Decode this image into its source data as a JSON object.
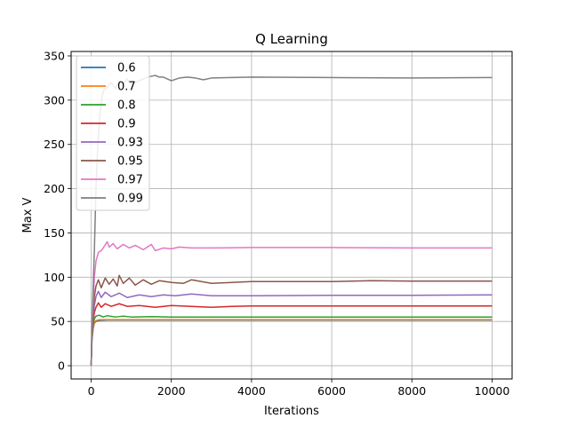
{
  "chart_data": {
    "type": "line",
    "title": "Q Learning",
    "xlabel": "Iterations",
    "ylabel": "Max V",
    "xlim": [
      -500,
      10500
    ],
    "ylim": [
      -15,
      355
    ],
    "xticks": [
      0,
      2000,
      4000,
      6000,
      8000,
      10000
    ],
    "yticks": [
      0,
      50,
      100,
      150,
      200,
      250,
      300,
      350
    ],
    "grid": true,
    "legend_position": "top-left",
    "series": [
      {
        "name": "0.6",
        "color": "#1f77b4",
        "x": [
          0,
          20,
          50,
          80,
          120,
          200,
          400,
          1000,
          2000,
          5000,
          10000
        ],
        "y": [
          0,
          30,
          42,
          48,
          50,
          51,
          51.5,
          51.5,
          51.5,
          51.5,
          51.5
        ]
      },
      {
        "name": "0.7",
        "color": "#ff7f0e",
        "x": [
          0,
          20,
          50,
          80,
          120,
          200,
          400,
          1000,
          2000,
          5000,
          10000
        ],
        "y": [
          0,
          30,
          43,
          49,
          51,
          52,
          52,
          52,
          52,
          52,
          52
        ]
      },
      {
        "name": "0.8",
        "color": "#2ca02c",
        "x": [
          0,
          20,
          50,
          80,
          120,
          200,
          300,
          400,
          600,
          800,
          1000,
          1500,
          2000,
          3000,
          5000,
          8000,
          10000
        ],
        "y": [
          0,
          32,
          46,
          53,
          56,
          57,
          55,
          56.5,
          55,
          56,
          55,
          55.5,
          55,
          55,
          55,
          55,
          55
        ]
      },
      {
        "name": "0.9",
        "color": "#d62728",
        "x": [
          0,
          20,
          50,
          80,
          120,
          180,
          250,
          350,
          500,
          700,
          900,
          1200,
          1600,
          2000,
          2500,
          3000,
          3500,
          4000,
          6000,
          8000,
          10000
        ],
        "y": [
          0,
          34,
          50,
          60,
          66,
          71,
          66,
          70,
          67,
          70,
          67,
          68,
          66,
          68,
          67,
          66,
          67,
          67.5,
          67.5,
          67.5,
          67.5
        ]
      },
      {
        "name": "0.93",
        "color": "#9467bd",
        "x": [
          0,
          20,
          50,
          80,
          120,
          180,
          250,
          350,
          500,
          700,
          900,
          1200,
          1500,
          1800,
          2100,
          2500,
          3000,
          4000,
          6000,
          8000,
          10000
        ],
        "y": [
          0,
          36,
          55,
          68,
          78,
          84,
          77,
          83,
          78,
          82,
          77,
          80,
          78,
          80,
          79,
          81,
          79,
          79,
          79.5,
          79.5,
          80
        ]
      },
      {
        "name": "0.95",
        "color": "#8c564b",
        "x": [
          0,
          20,
          50,
          80,
          120,
          180,
          250,
          350,
          450,
          550,
          650,
          700,
          800,
          950,
          1100,
          1300,
          1500,
          1700,
          2000,
          2300,
          2500,
          3000,
          3500,
          4000,
          5000,
          6000,
          7000,
          8000,
          9000,
          10000
        ],
        "y": [
          0,
          38,
          60,
          78,
          90,
          97,
          88,
          99,
          92,
          98,
          90,
          102,
          93,
          99,
          91,
          97,
          92,
          96,
          94,
          93,
          97,
          93,
          94,
          95,
          95,
          95,
          96,
          95.5,
          95.5,
          95.5
        ]
      },
      {
        "name": "0.97",
        "color": "#e377c2",
        "x": [
          0,
          20,
          50,
          80,
          120,
          180,
          250,
          300,
          400,
          450,
          550,
          650,
          800,
          950,
          1100,
          1300,
          1500,
          1600,
          1800,
          2000,
          2200,
          2500,
          3000,
          4000,
          6000,
          8000,
          10000
        ],
        "y": [
          0,
          40,
          70,
          100,
          118,
          128,
          130,
          133,
          140,
          134,
          138,
          132,
          137,
          133,
          136,
          131,
          137,
          130,
          133,
          132,
          134,
          133,
          133,
          133.5,
          133.5,
          133,
          133
        ]
      },
      {
        "name": "0.99",
        "color": "#7f7f7f",
        "x": [
          0,
          20,
          50,
          80,
          100,
          120,
          150,
          180,
          220,
          260,
          300,
          400,
          500,
          600,
          700,
          800,
          900,
          1000,
          1200,
          1400,
          1600,
          1700,
          1800,
          2000,
          2200,
          2400,
          2600,
          2800,
          3000,
          3500,
          4000,
          6000,
          8000,
          10000
        ],
        "y": [
          0,
          45,
          90,
          130,
          165,
          200,
          235,
          260,
          285,
          300,
          310,
          315,
          320,
          313,
          322,
          318,
          324,
          318,
          322,
          326,
          328,
          326,
          326,
          322,
          325,
          326,
          325,
          323,
          325,
          325.5,
          326,
          325.5,
          325,
          325.5
        ]
      }
    ]
  }
}
